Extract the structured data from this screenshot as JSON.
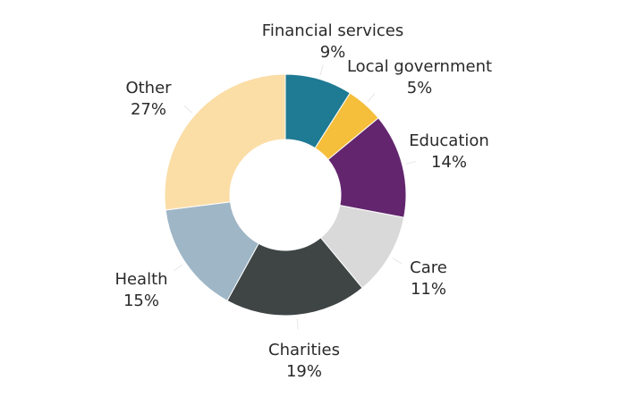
{
  "chart_data": {
    "type": "pie",
    "variant": "donut",
    "title": "",
    "legend": "none",
    "slices": [
      {
        "label": "Financial services",
        "value": 9,
        "value_label": "9%",
        "color": "#1f7a93"
      },
      {
        "label": "Local government",
        "value": 5,
        "value_label": "5%",
        "color": "#f5be3b"
      },
      {
        "label": "Education",
        "value": 14,
        "value_label": "14%",
        "color": "#63266e"
      },
      {
        "label": "Care",
        "value": 11,
        "value_label": "11%",
        "color": "#d9d9d9"
      },
      {
        "label": "Charities",
        "value": 19,
        "value_label": "19%",
        "color": "#3f4545"
      },
      {
        "label": "Health",
        "value": 15,
        "value_label": "15%",
        "color": "#9fb6c6"
      },
      {
        "label": "Other",
        "value": 27,
        "value_label": "27%",
        "color": "#fbdda6"
      }
    ]
  }
}
